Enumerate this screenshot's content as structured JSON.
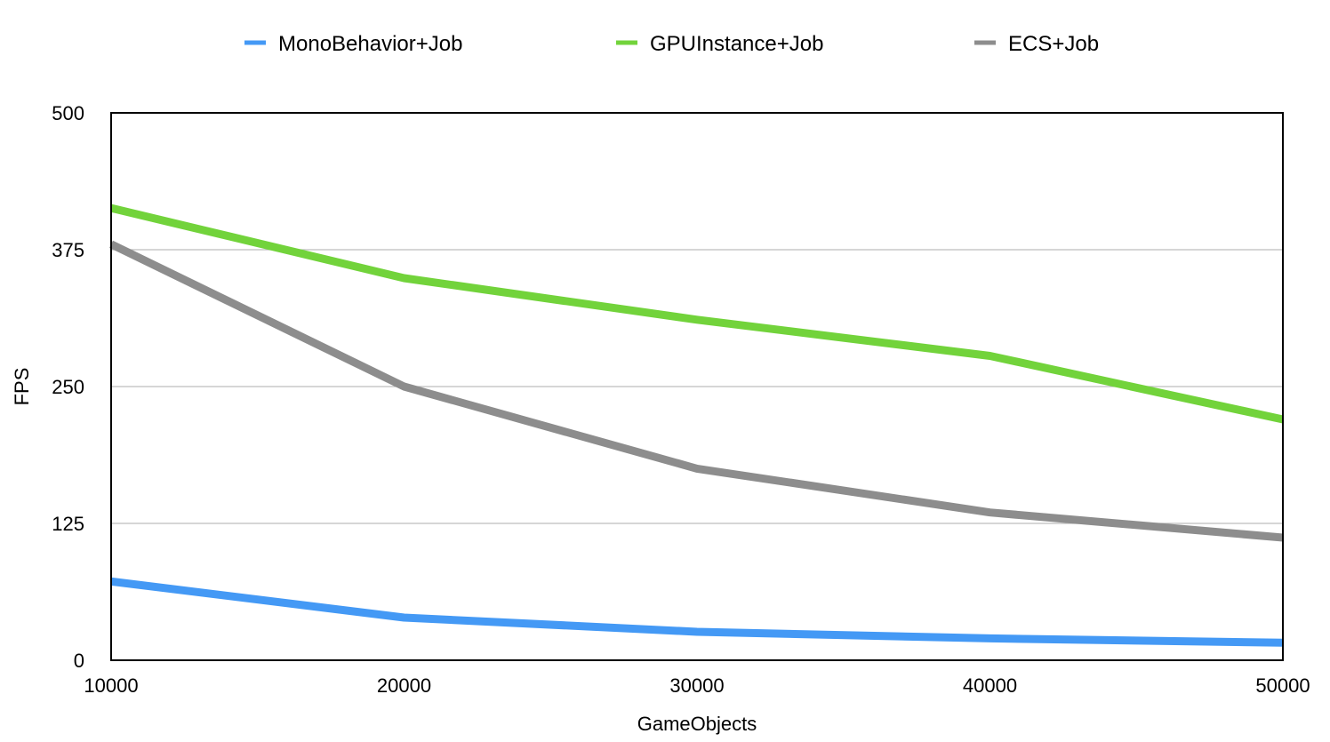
{
  "chart_data": {
    "type": "line",
    "title": "",
    "xlabel": "GameObjects",
    "ylabel": "FPS",
    "x": [
      10000,
      20000,
      30000,
      40000,
      50000
    ],
    "xlim": [
      10000,
      50000
    ],
    "ylim": [
      0,
      500
    ],
    "x_ticks": [
      "10000",
      "20000",
      "30000",
      "40000",
      "50000"
    ],
    "y_ticks": [
      "0",
      "125",
      "250",
      "375",
      "500"
    ],
    "y_tick_values": [
      0,
      125,
      250,
      375,
      500
    ],
    "grid": "horizontal",
    "legend_position": "top-center",
    "series": [
      {
        "name": "MonoBehavior+Job",
        "color": "#4499f5",
        "values": [
          72,
          39,
          26,
          20,
          16
        ]
      },
      {
        "name": "GPUInstance+Job",
        "color": "#72d33b",
        "values": [
          413,
          349,
          311,
          278,
          220
        ]
      },
      {
        "name": "ECS+Job",
        "color": "#8d8d8d",
        "values": [
          380,
          250,
          175,
          135,
          112
        ]
      }
    ]
  }
}
